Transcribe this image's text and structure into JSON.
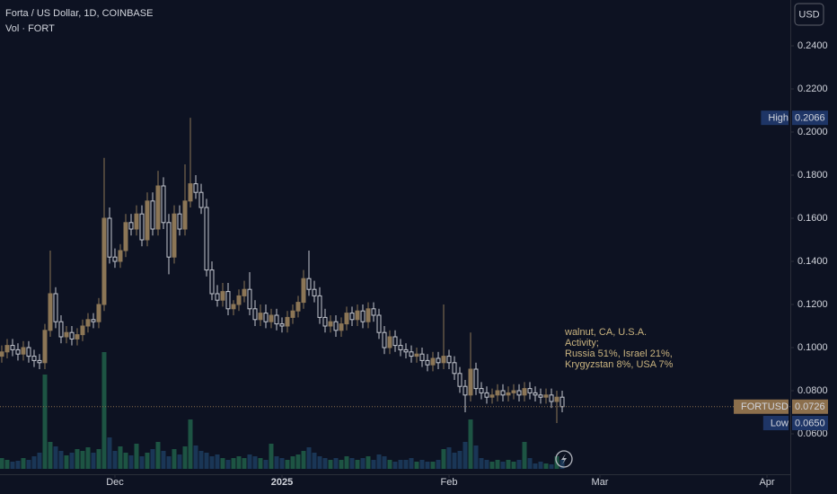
{
  "chart_data": {
    "type": "candlestick",
    "title": "Forta / US Dollar, 1D, COINBASE",
    "subtitle": "Vol · FORT",
    "currency_button": "USD",
    "annotation": [
      "walnut, CA, U.S.A.",
      "Activity;",
      "Russia 51%, Israel 21%,",
      "Krygyzstan 8%, USA 7%"
    ],
    "up_color": "#8c7656",
    "down_color": "#c4c7cf",
    "volume_up_color": "#1d5443",
    "volume_down_color": "#1a3656",
    "xlim": [
      -0.33,
      146.33
    ],
    "xticks": [
      {
        "value": 21,
        "label": "Dec"
      },
      {
        "value": 52,
        "label": "2025"
      },
      {
        "value": 83,
        "label": "Feb"
      },
      {
        "value": 111,
        "label": "Mar"
      },
      {
        "value": 142,
        "label": "Apr"
      }
    ],
    "ylim": [
      0.04125,
      0.26125
    ],
    "yticks": [
      {
        "value": 0.06,
        "label": "0.0600"
      },
      {
        "value": 0.08,
        "label": "0.0800"
      },
      {
        "value": 0.1,
        "label": "0.1000"
      },
      {
        "value": 0.12,
        "label": "0.1200"
      },
      {
        "value": 0.14,
        "label": "0.1400"
      },
      {
        "value": 0.16,
        "label": "0.1600"
      },
      {
        "value": 0.18,
        "label": "0.1800"
      },
      {
        "value": 0.2,
        "label": "0.2000"
      },
      {
        "value": 0.22,
        "label": "0.2200"
      },
      {
        "value": 0.24,
        "label": "0.2400"
      }
    ],
    "volume_lim": [
      0,
      400
    ],
    "price_marks": [
      {
        "name": "High",
        "value": 0.2066,
        "label": "0.2066",
        "color": "#1e3566"
      },
      {
        "name": "FORTUSD",
        "value": 0.0726,
        "label": "0.0726",
        "color": "#8c6f4c"
      },
      {
        "name": "Low",
        "value": 0.065,
        "label": "0.0650",
        "color": "#1e3566"
      }
    ],
    "open": [
      0.096,
      0.098,
      0.101,
      0.099,
      0.097,
      0.1,
      0.096,
      0.094,
      0.093,
      0.108,
      0.125,
      0.112,
      0.105,
      0.107,
      0.104,
      0.106,
      0.11,
      0.113,
      0.112,
      0.12,
      0.16,
      0.142,
      0.14,
      0.145,
      0.158,
      0.155,
      0.162,
      0.15,
      0.168,
      0.155,
      0.175,
      0.158,
      0.142,
      0.162,
      0.155,
      0.168,
      0.176,
      0.172,
      0.165,
      0.136,
      0.125,
      0.122,
      0.126,
      0.118,
      0.12,
      0.124,
      0.127,
      0.118,
      0.113,
      0.116,
      0.112,
      0.115,
      0.111,
      0.11,
      0.114,
      0.117,
      0.121,
      0.132,
      0.127,
      0.124,
      0.114,
      0.11,
      0.112,
      0.108,
      0.111,
      0.116,
      0.113,
      0.117,
      0.112,
      0.118,
      0.115,
      0.107,
      0.1,
      0.105,
      0.101,
      0.099,
      0.098,
      0.096,
      0.097,
      0.094,
      0.092,
      0.095,
      0.093,
      0.096,
      0.093,
      0.088,
      0.082,
      0.078,
      0.09,
      0.081,
      0.079,
      0.077,
      0.078,
      0.08,
      0.078,
      0.079,
      0.08,
      0.078,
      0.081,
      0.079,
      0.078,
      0.077,
      0.078,
      0.075,
      0.077
    ],
    "high": [
      0.101,
      0.104,
      0.104,
      0.102,
      0.103,
      0.103,
      0.099,
      0.097,
      0.111,
      0.145,
      0.128,
      0.115,
      0.11,
      0.11,
      0.109,
      0.113,
      0.116,
      0.116,
      0.123,
      0.188,
      0.165,
      0.146,
      0.148,
      0.162,
      0.162,
      0.166,
      0.166,
      0.172,
      0.172,
      0.182,
      0.179,
      0.162,
      0.166,
      0.166,
      0.185,
      0.2066,
      0.18,
      0.176,
      0.169,
      0.14,
      0.129,
      0.13,
      0.13,
      0.122,
      0.127,
      0.131,
      0.135,
      0.122,
      0.12,
      0.12,
      0.118,
      0.118,
      0.114,
      0.117,
      0.12,
      0.124,
      0.136,
      0.145,
      0.131,
      0.128,
      0.118,
      0.115,
      0.115,
      0.114,
      0.119,
      0.119,
      0.12,
      0.12,
      0.121,
      0.121,
      0.118,
      0.11,
      0.108,
      0.108,
      0.104,
      0.102,
      0.101,
      0.1,
      0.1,
      0.097,
      0.098,
      0.098,
      0.12,
      0.099,
      0.096,
      0.091,
      0.085,
      0.107,
      0.093,
      0.084,
      0.082,
      0.081,
      0.083,
      0.083,
      0.082,
      0.083,
      0.083,
      0.084,
      0.084,
      0.082,
      0.081,
      0.081,
      0.081,
      0.08,
      0.08
    ],
    "low": [
      0.093,
      0.095,
      0.096,
      0.094,
      0.094,
      0.093,
      0.091,
      0.09,
      0.09,
      0.105,
      0.109,
      0.102,
      0.102,
      0.101,
      0.101,
      0.103,
      0.107,
      0.109,
      0.109,
      0.117,
      0.139,
      0.137,
      0.137,
      0.142,
      0.152,
      0.152,
      0.147,
      0.147,
      0.152,
      0.152,
      0.155,
      0.134,
      0.139,
      0.152,
      0.152,
      0.165,
      0.169,
      0.162,
      0.133,
      0.122,
      0.119,
      0.119,
      0.115,
      0.115,
      0.117,
      0.121,
      0.115,
      0.11,
      0.11,
      0.109,
      0.109,
      0.108,
      0.107,
      0.107,
      0.111,
      0.114,
      0.118,
      0.124,
      0.121,
      0.111,
      0.107,
      0.107,
      0.105,
      0.105,
      0.108,
      0.11,
      0.11,
      0.109,
      0.109,
      0.112,
      0.104,
      0.097,
      0.097,
      0.098,
      0.096,
      0.095,
      0.093,
      0.093,
      0.091,
      0.089,
      0.089,
      0.09,
      0.09,
      0.09,
      0.085,
      0.079,
      0.07,
      0.075,
      0.078,
      0.076,
      0.074,
      0.074,
      0.075,
      0.075,
      0.075,
      0.076,
      0.075,
      0.075,
      0.076,
      0.075,
      0.074,
      0.074,
      0.072,
      0.065,
      0.07
    ],
    "close": [
      0.098,
      0.101,
      0.099,
      0.097,
      0.1,
      0.096,
      0.094,
      0.093,
      0.108,
      0.125,
      0.112,
      0.105,
      0.107,
      0.104,
      0.106,
      0.11,
      0.113,
      0.112,
      0.12,
      0.16,
      0.142,
      0.14,
      0.145,
      0.158,
      0.155,
      0.162,
      0.15,
      0.168,
      0.155,
      0.175,
      0.158,
      0.142,
      0.162,
      0.155,
      0.168,
      0.176,
      0.172,
      0.165,
      0.136,
      0.125,
      0.122,
      0.126,
      0.118,
      0.12,
      0.124,
      0.127,
      0.118,
      0.113,
      0.116,
      0.112,
      0.115,
      0.111,
      0.11,
      0.114,
      0.117,
      0.121,
      0.132,
      0.127,
      0.124,
      0.114,
      0.11,
      0.112,
      0.108,
      0.111,
      0.116,
      0.113,
      0.117,
      0.112,
      0.118,
      0.115,
      0.107,
      0.1,
      0.105,
      0.101,
      0.099,
      0.098,
      0.096,
      0.097,
      0.094,
      0.092,
      0.095,
      0.093,
      0.096,
      0.093,
      0.088,
      0.082,
      0.078,
      0.09,
      0.081,
      0.079,
      0.077,
      0.078,
      0.08,
      0.078,
      0.079,
      0.08,
      0.078,
      0.081,
      0.079,
      0.078,
      0.077,
      0.078,
      0.075,
      0.077,
      0.0726
    ],
    "volume": [
      12,
      10,
      8,
      9,
      12,
      10,
      14,
      18,
      105,
      30,
      25,
      20,
      15,
      18,
      22,
      20,
      24,
      18,
      22,
      130,
      35,
      20,
      25,
      18,
      15,
      28,
      14,
      18,
      22,
      30,
      20,
      14,
      22,
      16,
      25,
      55,
      26,
      20,
      18,
      14,
      16,
      12,
      10,
      12,
      14,
      12,
      16,
      14,
      12,
      10,
      28,
      14,
      12,
      10,
      14,
      16,
      20,
      24,
      18,
      14,
      12,
      10,
      12,
      10,
      14,
      12,
      10,
      12,
      14,
      10,
      16,
      14,
      10,
      8,
      10,
      10,
      12,
      8,
      10,
      8,
      8,
      10,
      22,
      24,
      18,
      20,
      30,
      55,
      26,
      12,
      10,
      8,
      10,
      8,
      10,
      8,
      10,
      30,
      12,
      6,
      8,
      6,
      5,
      14,
      10
    ]
  }
}
